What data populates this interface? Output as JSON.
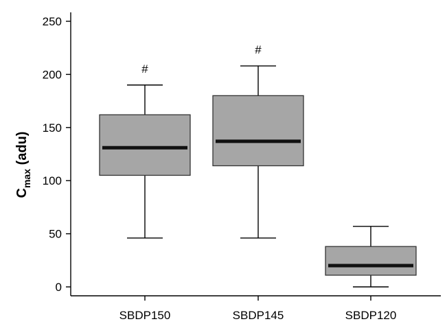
{
  "chart_data": {
    "type": "box",
    "ylabel": {
      "main": "C",
      "sub": "max",
      "unit": "(adu)"
    },
    "xlabel": "",
    "ylim": [
      -5,
      258
    ],
    "yticks": [
      0,
      50,
      100,
      150,
      200,
      250
    ],
    "categories": [
      "SBDP150",
      "SBDP145",
      "SBDP120"
    ],
    "boxes": [
      {
        "name": "SBDP150",
        "min": 46,
        "q1": 105,
        "median": 131,
        "q3": 162,
        "max": 190,
        "annotation": "#"
      },
      {
        "name": "SBDP145",
        "min": 46,
        "q1": 114,
        "median": 137,
        "q3": 180,
        "max": 208,
        "annotation": "#"
      },
      {
        "name": "SBDP120",
        "min": 0,
        "q1": 11,
        "median": 20,
        "q3": 38,
        "max": 57,
        "annotation": ""
      }
    ],
    "colors": {
      "box_fill": "#a6a6a6",
      "box_stroke": "#333333",
      "median": "#111111",
      "whisker": "#000000",
      "axis": "#000000"
    },
    "grid": false
  }
}
